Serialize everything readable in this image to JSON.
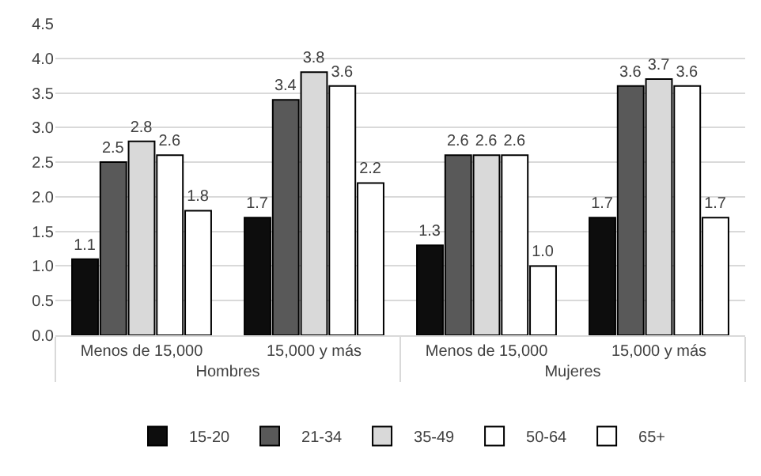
{
  "chart_data": {
    "type": "bar",
    "categories": [
      "Menos de 15,000",
      "15,000 y más",
      "Menos de 15,000",
      "15,000 y más"
    ],
    "annotations": [
      "Hombres",
      "Mujeres"
    ],
    "series": [
      {
        "name": "15-20",
        "color": "#0d0d0d",
        "values": [
          1.1,
          1.7,
          1.3,
          1.7
        ],
        "value_labels": [
          "1.1",
          "1.7",
          "1.3",
          "1.7"
        ]
      },
      {
        "name": "21-34",
        "color": "#595959",
        "values": [
          2.5,
          3.4,
          2.6,
          3.6
        ],
        "value_labels": [
          "2.5",
          "3.4",
          "2.6",
          "3.6"
        ]
      },
      {
        "name": "35-49",
        "color": "#d9d9d9",
        "values": [
          2.8,
          3.8,
          2.6,
          3.7
        ],
        "value_labels": [
          "2.8",
          "3.8",
          "2.6",
          "3.7"
        ]
      },
      {
        "name": "50-64",
        "color": "#ffffff",
        "values": [
          2.6,
          3.6,
          2.6,
          3.6
        ],
        "value_labels": [
          "2.6",
          "3.6",
          "2.6",
          "3.6"
        ]
      },
      {
        "name": "65+",
        "color": "#ffffff",
        "values": [
          1.8,
          2.2,
          1.0,
          1.7
        ],
        "value_labels": [
          "1.8",
          "2.2",
          "1.0",
          "1.7"
        ]
      }
    ],
    "ylim": [
      0,
      4.5
    ],
    "yticks": [
      {
        "value": 0,
        "label": "0.0"
      },
      {
        "value": 0.5,
        "label": "0.5"
      },
      {
        "value": 1,
        "label": "1.0"
      },
      {
        "value": 1.5,
        "label": "1.5"
      },
      {
        "value": 2,
        "label": "2.0"
      },
      {
        "value": 2.5,
        "label": "2.5"
      },
      {
        "value": 3,
        "label": "3.0"
      },
      {
        "value": 3.5,
        "label": "3.5"
      },
      {
        "value": 4,
        "label": "4.0"
      },
      {
        "value": 4.5,
        "label": "4.5"
      }
    ],
    "grid": "y",
    "legend": "bottom"
  }
}
